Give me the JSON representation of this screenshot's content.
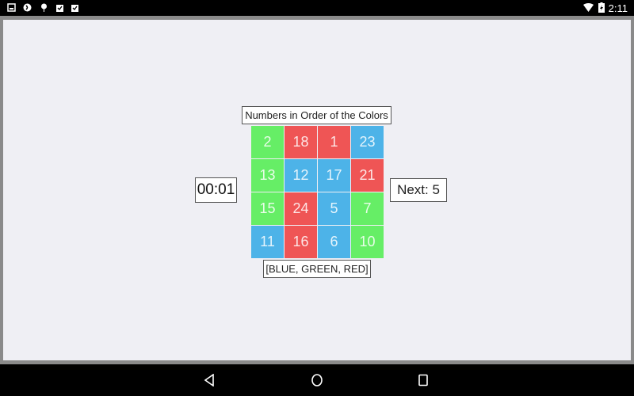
{
  "status_bar": {
    "icons": [
      "gallery-icon",
      "sync-icon",
      "android-debug-icon",
      "clipboard-check-icon",
      "clipboard-check-icon"
    ],
    "clock": "2:11"
  },
  "game": {
    "title": "Numbers in Order of the Colors",
    "timer": "00:01",
    "next": "Next: 5",
    "color_order": "[BLUE, GREEN, RED]",
    "colors": {
      "green": "#66ee66",
      "red": "#ef5555",
      "blue": "#4db3e8"
    },
    "cells": [
      {
        "n": "2",
        "c": "green"
      },
      {
        "n": "18",
        "c": "red"
      },
      {
        "n": "1",
        "c": "red"
      },
      {
        "n": "23",
        "c": "blue"
      },
      {
        "n": "13",
        "c": "green"
      },
      {
        "n": "12",
        "c": "blue"
      },
      {
        "n": "17",
        "c": "blue"
      },
      {
        "n": "21",
        "c": "red"
      },
      {
        "n": "15",
        "c": "green"
      },
      {
        "n": "24",
        "c": "red"
      },
      {
        "n": "5",
        "c": "blue"
      },
      {
        "n": "7",
        "c": "green"
      },
      {
        "n": "11",
        "c": "blue"
      },
      {
        "n": "16",
        "c": "red"
      },
      {
        "n": "6",
        "c": "blue"
      },
      {
        "n": "10",
        "c": "green"
      }
    ]
  },
  "nav_bar": {
    "buttons": [
      "back",
      "home",
      "recents"
    ]
  }
}
